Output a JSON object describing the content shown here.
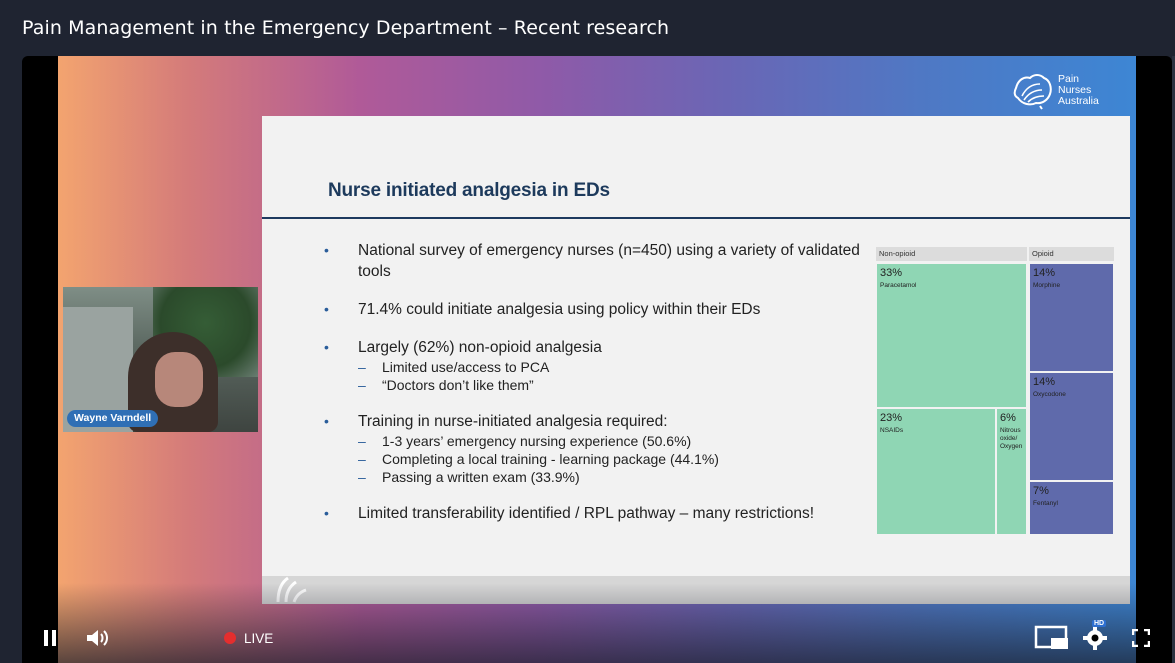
{
  "window": {
    "title": "Pain Management in the Emergency Department – Recent research"
  },
  "brand": {
    "logo_text": [
      "Pain",
      "Nurses",
      "Australia"
    ]
  },
  "slide": {
    "title": "Nurse initiated analgesia in EDs",
    "bullets": [
      {
        "text": "National survey of emergency nurses (n=450) using a variety of validated tools",
        "subs": []
      },
      {
        "text": "71.4% could initiate analgesia using policy within their EDs",
        "subs": []
      },
      {
        "text": "Largely (62%) non-opioid analgesia",
        "subs": [
          "Limited use/access to PCA",
          "“Doctors don’t like them”"
        ]
      },
      {
        "text": "Training in nurse-initiated analgesia required:",
        "subs": [
          "1-3 years’ emergency nursing experience (50.6%)",
          "Completing a local training - learning package  (44.1%)",
          "Passing a written exam (33.9%)"
        ]
      },
      {
        "text": "Limited transferability identified / RPL pathway – many restrictions!",
        "subs": []
      }
    ],
    "bullet_marker": "•",
    "sub_marker": "–"
  },
  "chart_data": {
    "type": "treemap",
    "groups": [
      {
        "name": "Non-opioid",
        "items": [
          {
            "pct": "33%",
            "label": "Paracetamol",
            "value": 33
          },
          {
            "pct": "23%",
            "label": "NSAIDs",
            "value": 23
          },
          {
            "pct": "6%",
            "label": "Nitrous oxide/ Oxygen",
            "value": 6
          }
        ]
      },
      {
        "name": "Opioid",
        "items": [
          {
            "pct": "14%",
            "label": "Morphine",
            "value": 14
          },
          {
            "pct": "14%",
            "label": "Oxycodone",
            "value": 14
          },
          {
            "pct": "7%",
            "label": "Fentanyl",
            "value": 7
          }
        ]
      }
    ],
    "colors": {
      "non_opioid": "#8fd6b4",
      "opioid": "#5f6aab"
    }
  },
  "webcam": {
    "presenter_name": "Wayne Varndell"
  },
  "controls": {
    "play_state": "pause",
    "live_label": "LIVE",
    "hd_badge": "HD",
    "icons": [
      "pause-icon",
      "volume-icon",
      "pip-icon",
      "settings-icon",
      "fullscreen-icon"
    ]
  }
}
